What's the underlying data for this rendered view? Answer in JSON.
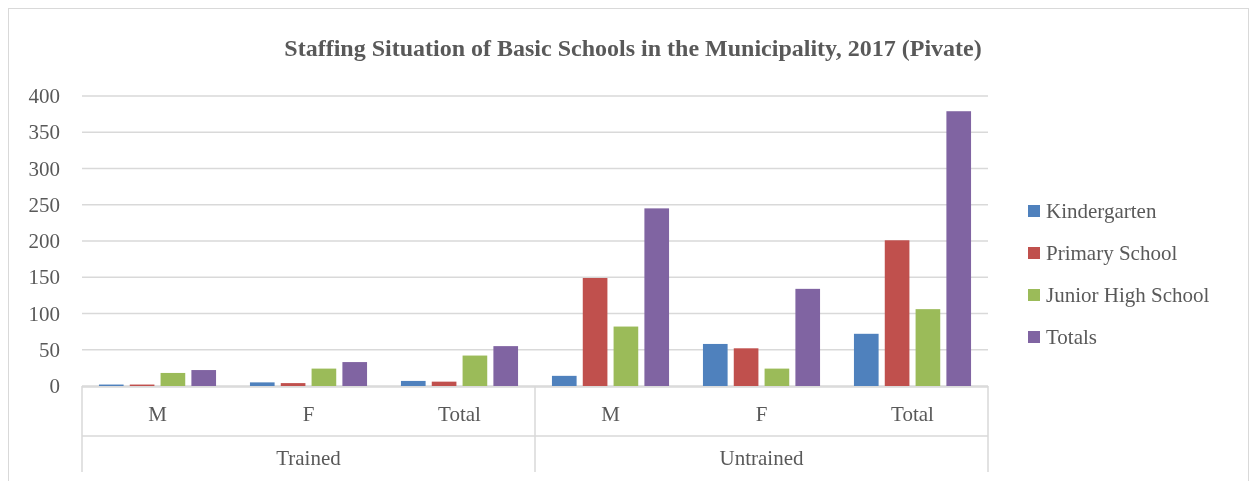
{
  "chart_data": {
    "type": "bar",
    "title": "Staffing Situation of Basic Schools in the Municipality, 2017 (Pivate)",
    "categories": [
      "M",
      "F",
      "Total",
      "M",
      "F",
      "Total"
    ],
    "annotations": [
      "Trained",
      "Untrained"
    ],
    "series": [
      {
        "name": "Kindergarten",
        "color": "#4f81bd",
        "values": [
          2,
          5,
          7,
          14,
          58,
          72
        ]
      },
      {
        "name": "Primary School",
        "color": "#c0504d",
        "values": [
          2,
          4,
          6,
          149,
          52,
          201
        ]
      },
      {
        "name": "Junior High School",
        "color": "#9bbb59",
        "values": [
          18,
          24,
          42,
          82,
          24,
          106
        ]
      },
      {
        "name": "Totals",
        "color": "#8064a2",
        "values": [
          22,
          33,
          55,
          245,
          134,
          379
        ]
      }
    ],
    "ylim": [
      0,
      400
    ],
    "yticks": [
      0,
      50,
      100,
      150,
      200,
      250,
      300,
      350,
      400
    ],
    "grid": "y",
    "legend": "right"
  }
}
